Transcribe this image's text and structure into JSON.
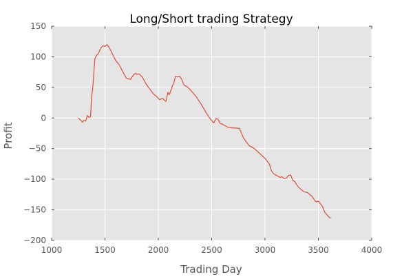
{
  "chart_data": {
    "type": "line",
    "title": "Long/Short trading Strategy",
    "xlabel": "Trading Day",
    "ylabel": "Profit",
    "xlim": [
      1000,
      4000
    ],
    "ylim": [
      -200,
      150
    ],
    "xticks": [
      1000,
      1500,
      2000,
      2500,
      3000,
      3500,
      4000
    ],
    "yticks": [
      150,
      100,
      50,
      0,
      -50,
      -100,
      -150,
      -200
    ],
    "grid": true,
    "legend": "none",
    "colors": {
      "plot_background": "#e5e5e5",
      "grid": "#ffffff",
      "line": "#e24a33"
    },
    "series": [
      {
        "x": [
          1250,
          1270,
          1290,
          1300,
          1320,
          1335,
          1350,
          1365,
          1375,
          1385,
          1395,
          1405,
          1420,
          1440,
          1460,
          1480,
          1500,
          1520,
          1540,
          1560,
          1580,
          1600,
          1630,
          1660,
          1700,
          1740,
          1770,
          1790,
          1800,
          1820,
          1850,
          1880,
          1900,
          1950,
          1990,
          2010,
          2040,
          2070,
          2090,
          2100,
          2110,
          2130,
          2145,
          2160,
          2180,
          2200,
          2220,
          2240,
          2270,
          2300,
          2350,
          2400,
          2450,
          2490,
          2520,
          2540,
          2560,
          2580,
          2600,
          2620,
          2650,
          2700,
          2760,
          2780,
          2800,
          2850,
          2900,
          2950,
          3000,
          3040,
          3060,
          3080,
          3100,
          3140,
          3160,
          3180,
          3200,
          3220,
          3240,
          3260,
          3280,
          3300,
          3320,
          3360,
          3400,
          3440,
          3460,
          3480,
          3500,
          3520,
          3540,
          3560,
          3580,
          3600,
          3615
        ],
        "y": [
          0,
          -3,
          -7,
          -4,
          -5,
          4,
          1,
          2,
          35,
          48,
          72,
          97,
          102,
          106,
          114,
          118,
          117,
          120,
          115,
          108,
          101,
          94,
          88,
          78,
          65,
          63,
          71,
          73,
          71,
          72,
          67,
          57,
          52,
          40,
          34,
          30,
          32,
          27,
          42,
          38,
          41,
          52,
          57,
          68,
          67,
          68,
          63,
          54,
          51,
          46,
          36,
          23,
          8,
          -2,
          -8,
          -1,
          -2,
          -9,
          -10,
          -12,
          -15,
          -16,
          -17,
          -25,
          -33,
          -45,
          -50,
          -58,
          -66,
          -75,
          -86,
          -91,
          -93,
          -97,
          -96,
          -99,
          -98,
          -94,
          -93,
          -102,
          -104,
          -110,
          -114,
          -120,
          -122,
          -128,
          -133,
          -137,
          -136,
          -140,
          -145,
          -154,
          -158,
          -162,
          -164
        ]
      }
    ]
  }
}
